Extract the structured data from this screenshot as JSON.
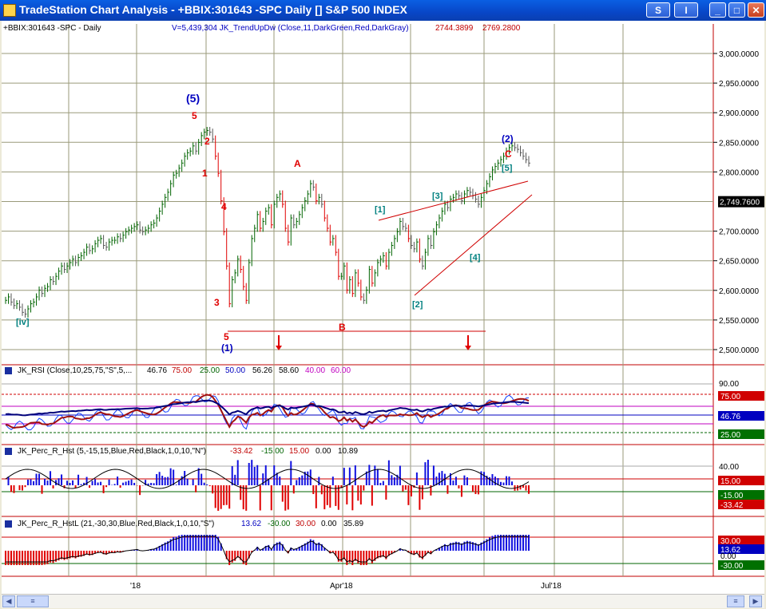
{
  "window": {
    "title": "TradeStation Chart Analysis - +BBIX:301643 -SPC Daily [] S&P 500 INDEX",
    "btn_s": "S",
    "btn_i": "I"
  },
  "chart_header": {
    "symbol": "+BBIX:301643 -SPC - Daily",
    "indicator": "V=5,439,304  JK_TrendUpDw (Close,11,DarkGreen,Red,DarkGray)",
    "v1": "2744.3899",
    "v2": "2769.2800"
  },
  "price_axis": {
    "ticks": [
      "3,000.0000",
      "2,950.0000",
      "2,900.0000",
      "2,850.0000",
      "2,800.0000",
      "2,700.0000",
      "2,650.0000",
      "2,600.0000",
      "2,550.0000",
      "2,500.0000"
    ],
    "last_price": "2,749.7600"
  },
  "wave_labels": {
    "w5_major": "(5)",
    "w5_red": "5",
    "w2_red": "2",
    "w1_red": "1",
    "w4_red": "4",
    "w3_red": "3",
    "w5_low": "5",
    "w1_major": "(1)",
    "iv": "[iv]",
    "A": "A",
    "B": "B",
    "C": "C",
    "w2_major": "(2)",
    "b1": "[1]",
    "b2": "[2]",
    "b3": "[3]",
    "b4": "[4]",
    "b5": "[5]"
  },
  "rsi_panel": {
    "title": "JK_RSI (Close,10,25,75,\"S\",5,...",
    "v1": "46.76",
    "v2": "75.00",
    "v3": "25.00",
    "v4": "50.00",
    "v5": "56.26",
    "v6": "58.60",
    "v7": "40.00",
    "v8": "60.00",
    "axis_90": "90.00",
    "b75": "75.00",
    "b46": "46.76",
    "b25": "25.00"
  },
  "perc_panel": {
    "title": "JK_Perc_R_Hst (5,-15,15,Blue,Red,Black,1,0,10,\"N\")",
    "v1": "-33.42",
    "v2": "-15.00",
    "v3": "15.00",
    "v4": "0.00",
    "v5": "10.89",
    "axis_40": "40.00",
    "b15": "15.00",
    "bm15": "-15.00",
    "bm33": "-33.42"
  },
  "percl_panel": {
    "title": "JK_Perc_R_HstL (21,-30,30,Blue,Red,Black,1,0,10,\"S\")",
    "v1": "13.62",
    "v2": "-30.00",
    "v3": "30.00",
    "v4": "0.00",
    "v5": "35.89",
    "b30": "30.00",
    "b13": "13.62",
    "b0": "0.00",
    "bm30": "-30.00"
  },
  "time_axis": {
    "t1": "'18",
    "t2": "Apr'18",
    "t3": "Jul'18"
  },
  "colors": {
    "grid": "#9a9a7a",
    "up": "#006400",
    "down": "#e00000",
    "teal": "#00807f",
    "navy": "#0000c0"
  }
}
